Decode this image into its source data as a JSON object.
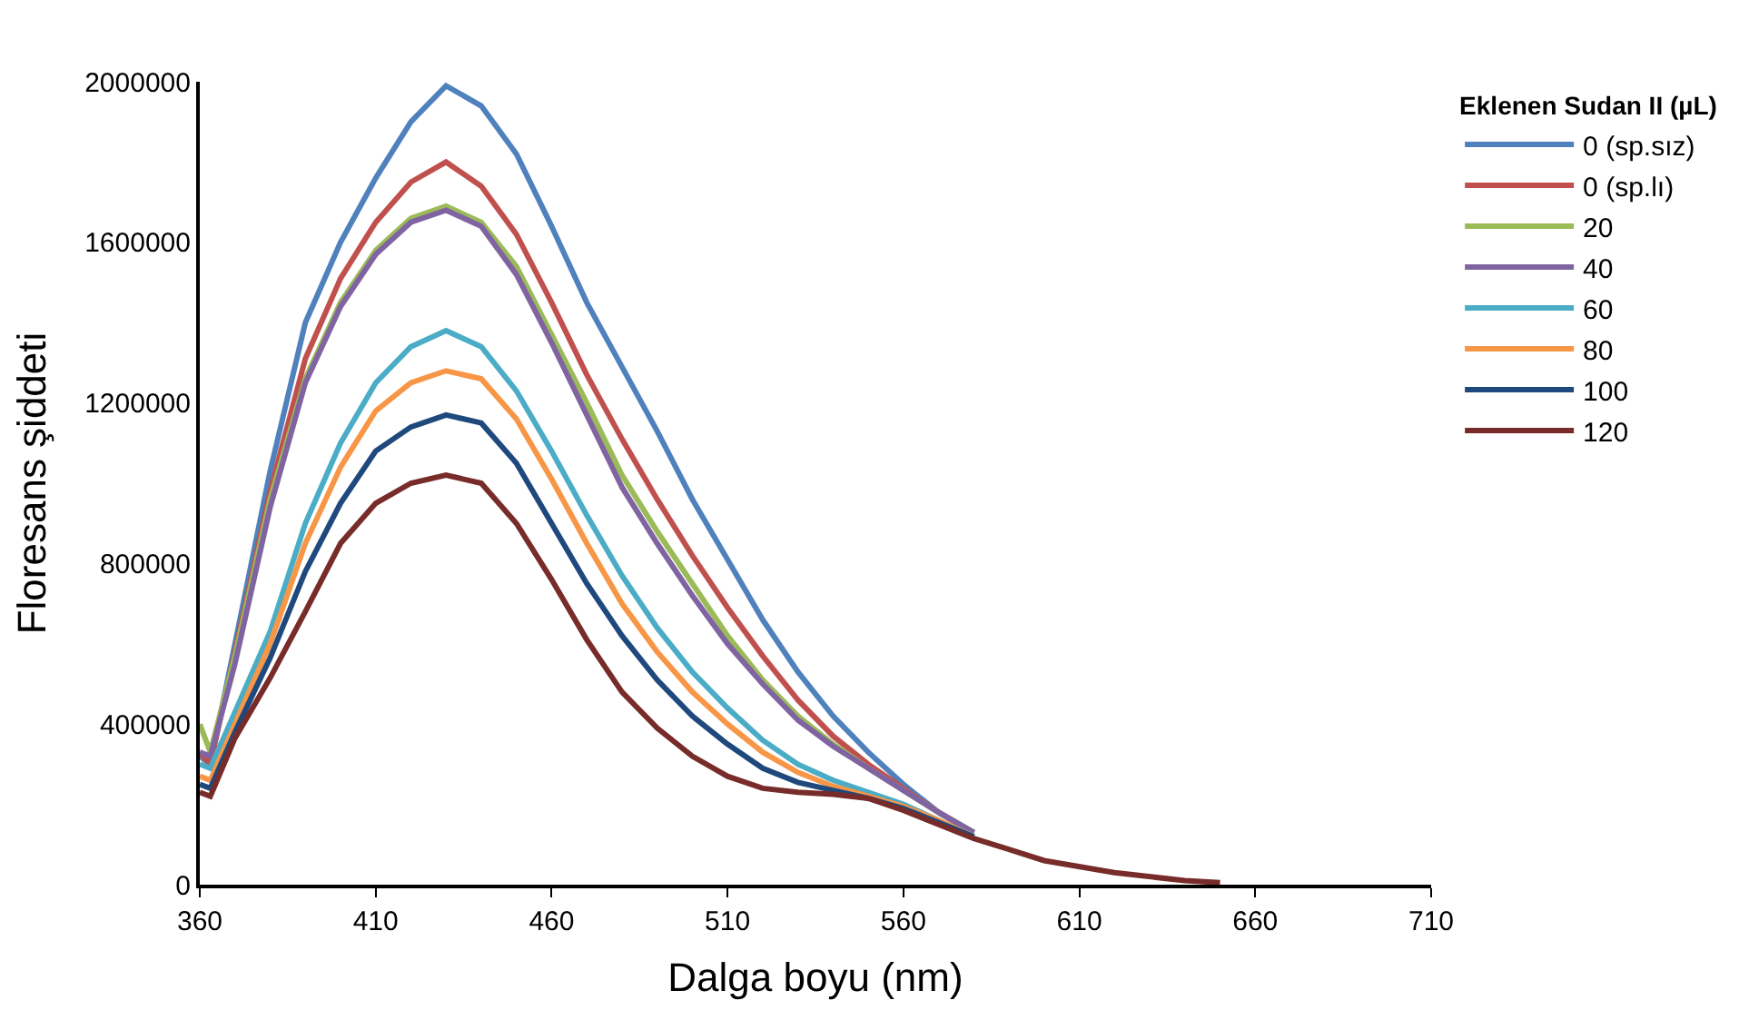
{
  "chart_data": {
    "type": "line",
    "xlabel": "Dalga boyu (nm)",
    "ylabel": "Floresans şiddeti",
    "legend_title": "Eklenen Sudan II (µL)",
    "legend": "right",
    "marker": "none",
    "line_style": "solid",
    "x": [
      360,
      363,
      370,
      380,
      390,
      400,
      410,
      420,
      430,
      440,
      450,
      460,
      470,
      480,
      490,
      500,
      510,
      520,
      530,
      540,
      550,
      560,
      570,
      580,
      590,
      600,
      620,
      640,
      650
    ],
    "xlim": [
      360,
      710
    ],
    "xticks": [
      360,
      410,
      460,
      510,
      560,
      610,
      660,
      710
    ],
    "ylim": [
      0,
      2000000
    ],
    "yticks": [
      0,
      400000,
      800000,
      1200000,
      1600000,
      2000000
    ],
    "series": [
      {
        "name": "0 (sp.sız)",
        "color": "#4f81bd",
        "values": [
          320000,
          300000,
          600000,
          1030000,
          1400000,
          1600000,
          1760000,
          1900000,
          1990000,
          1940000,
          1820000,
          1640000,
          1450000,
          1290000,
          1130000,
          960000,
          810000,
          660000,
          530000,
          420000,
          330000,
          250000,
          180000,
          130000,
          null,
          null,
          null,
          null,
          null
        ]
      },
      {
        "name": "0 (sp.lı)",
        "color": "#c0504d",
        "values": [
          330000,
          300000,
          580000,
          980000,
          1310000,
          1510000,
          1650000,
          1750000,
          1800000,
          1740000,
          1620000,
          1450000,
          1270000,
          1110000,
          960000,
          820000,
          690000,
          570000,
          460000,
          370000,
          300000,
          240000,
          180000,
          130000,
          null,
          null,
          null,
          null,
          null
        ]
      },
      {
        "name": "20",
        "color": "#9bbb59",
        "values": [
          400000,
          330000,
          570000,
          960000,
          1260000,
          1450000,
          1580000,
          1660000,
          1690000,
          1650000,
          1540000,
          1370000,
          1200000,
          1020000,
          880000,
          750000,
          620000,
          510000,
          420000,
          350000,
          290000,
          235000,
          180000,
          130000,
          null,
          null,
          null,
          null,
          null
        ]
      },
      {
        "name": "40",
        "color": "#8064a2",
        "values": [
          330000,
          320000,
          550000,
          940000,
          1250000,
          1440000,
          1570000,
          1650000,
          1680000,
          1640000,
          1520000,
          1350000,
          1170000,
          990000,
          850000,
          720000,
          600000,
          500000,
          410000,
          345000,
          290000,
          235000,
          180000,
          130000,
          null,
          null,
          null,
          null,
          null
        ]
      },
      {
        "name": "60",
        "color": "#4bacc6",
        "values": [
          300000,
          290000,
          430000,
          630000,
          900000,
          1100000,
          1250000,
          1340000,
          1380000,
          1340000,
          1230000,
          1080000,
          920000,
          770000,
          640000,
          530000,
          440000,
          360000,
          300000,
          260000,
          230000,
          200000,
          160000,
          120000,
          null,
          null,
          null,
          null,
          null
        ]
      },
      {
        "name": "80",
        "color": "#f79646",
        "values": [
          270000,
          260000,
          400000,
          600000,
          850000,
          1040000,
          1180000,
          1250000,
          1280000,
          1260000,
          1160000,
          1010000,
          850000,
          700000,
          580000,
          480000,
          400000,
          330000,
          280000,
          245000,
          220000,
          195000,
          160000,
          120000,
          null,
          null,
          null,
          null,
          null
        ]
      },
      {
        "name": "100",
        "color": "#1f497d",
        "values": [
          250000,
          240000,
          380000,
          565000,
          780000,
          950000,
          1080000,
          1140000,
          1170000,
          1150000,
          1050000,
          900000,
          750000,
          620000,
          510000,
          420000,
          350000,
          290000,
          255000,
          235000,
          215000,
          190000,
          155000,
          120000,
          null,
          null,
          null,
          null,
          null
        ]
      },
      {
        "name": "120",
        "color": "#772c2a",
        "values": [
          230000,
          220000,
          365000,
          515000,
          680000,
          850000,
          950000,
          1000000,
          1020000,
          1000000,
          900000,
          760000,
          610000,
          480000,
          390000,
          320000,
          270000,
          240000,
          230000,
          225000,
          215000,
          185000,
          150000,
          115000,
          88000,
          60000,
          30000,
          10000,
          5000
        ]
      }
    ]
  }
}
